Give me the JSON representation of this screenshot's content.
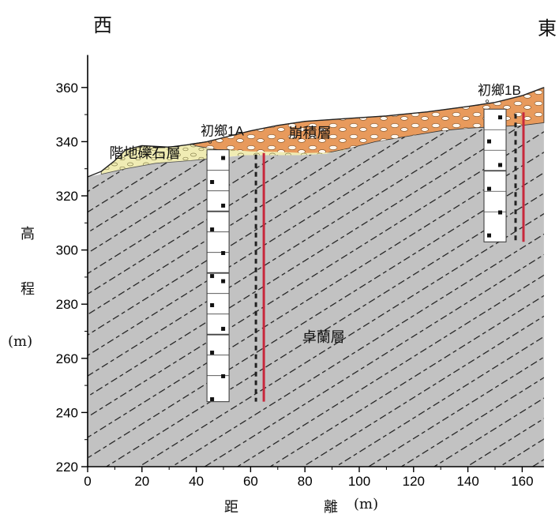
{
  "directions": {
    "west": "西",
    "east": "東"
  },
  "axis": {
    "y_label_chars": [
      "高",
      "程",
      "(m)"
    ],
    "x_label_chars": [
      "距",
      "離",
      "(m)"
    ],
    "x_ticks": [
      0,
      20,
      40,
      60,
      80,
      100,
      120,
      140,
      160
    ],
    "y_ticks": [
      220,
      240,
      260,
      280,
      300,
      320,
      340,
      360
    ],
    "xlim": [
      0,
      168
    ],
    "ylim": [
      220,
      372
    ]
  },
  "layers": {
    "terrace": "階地礫石層",
    "colluvium": "崩積層",
    "bedrock": "卓蘭層"
  },
  "boreholes": [
    {
      "name": "初鄉1A",
      "x": 48,
      "top": 337,
      "bottom": 244
    },
    {
      "name": "初鄉1B",
      "x": 150,
      "top": 352,
      "bottom": 303
    }
  ],
  "colors": {
    "bedrock_fill": "#c2c2c2",
    "colluvium_fill": "#e89a5c",
    "terrace_fill": "#f0ecb4",
    "casing_red": "#c8283c"
  }
}
